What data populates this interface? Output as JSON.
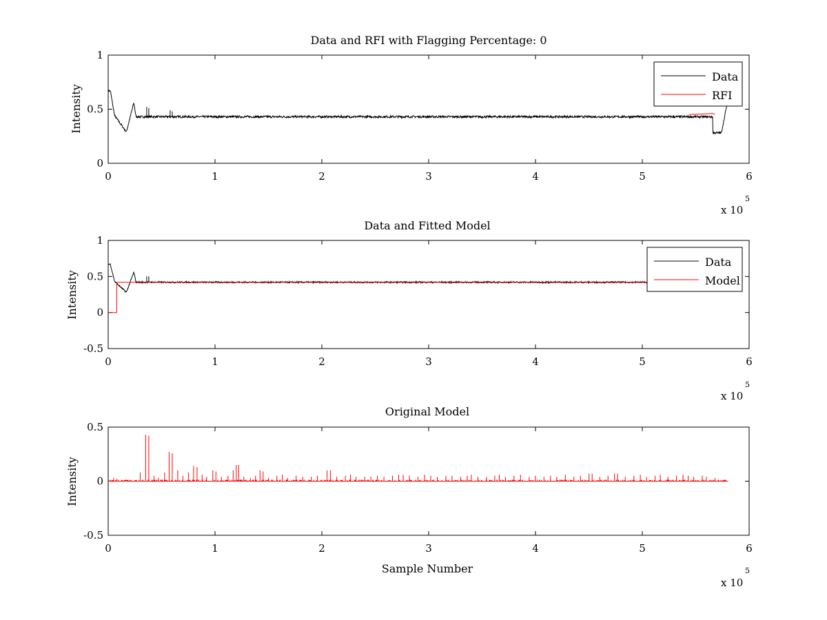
{
  "colors": {
    "data": "#000000",
    "rfi": "#ff0000",
    "model": "#ff0000",
    "background": "#ffffff",
    "axes": "#000000"
  },
  "chart_data": [
    {
      "type": "line",
      "title": "Data and RFI with Flagging Percentage: 0",
      "xlabel": "",
      "ylabel": "Intensity",
      "xlim": [
        0,
        600000
      ],
      "ylim": [
        0,
        1
      ],
      "xticks": [
        0,
        1,
        2,
        3,
        4,
        5,
        6
      ],
      "yticks": [
        "0",
        "0.5",
        "1"
      ],
      "x_exponent": "x 10",
      "x_exponent_power": "5",
      "legend": {
        "position": "top-right",
        "entries": [
          "Data",
          "RFI"
        ]
      },
      "grid": false,
      "series": [
        {
          "name": "Data",
          "color": "#000000",
          "baseline": 0.43,
          "noise": 0.01,
          "x_end": 580000,
          "features": [
            {
              "x": 2000,
              "y": 0.67
            },
            {
              "x": 6000,
              "y": 0.44
            },
            {
              "x": 17000,
              "y": 0.29
            },
            {
              "x": 24000,
              "y": 0.56
            },
            {
              "x": 26000,
              "y": 0.43
            },
            {
              "x": 574000,
              "y": 0.28
            },
            {
              "x": 579000,
              "y": 0.53
            }
          ],
          "spikes": [
            [
              36000,
              0.52
            ],
            [
              38000,
              0.51
            ],
            [
              58000,
              0.49
            ],
            [
              60000,
              0.48
            ]
          ]
        },
        {
          "name": "RFI",
          "color": "#ff0000",
          "points": [
            [
              544000,
              0.45
            ],
            [
              566000,
              0.46
            ],
            [
              568000,
              0.45
            ]
          ]
        }
      ]
    },
    {
      "type": "line",
      "title": "Data and Fitted Model",
      "xlabel": "",
      "ylabel": "Intensity",
      "xlim": [
        0,
        600000
      ],
      "ylim": [
        -0.5,
        1
      ],
      "xticks": [
        0,
        1,
        2,
        3,
        4,
        5,
        6
      ],
      "yticks": [
        "-0.5",
        "0",
        "0.5",
        "1"
      ],
      "x_exponent": "x 10",
      "x_exponent_power": "5",
      "legend": {
        "position": "top-right",
        "entries": [
          "Data",
          "Model"
        ]
      },
      "grid": false,
      "series": [
        {
          "name": "Data",
          "color": "#000000",
          "baseline": 0.42,
          "noise": 0.01,
          "x_end": 580000,
          "features": [
            {
              "x": 2000,
              "y": 0.67
            },
            {
              "x": 6000,
              "y": 0.43
            },
            {
              "x": 17000,
              "y": 0.28
            },
            {
              "x": 24000,
              "y": 0.56
            },
            {
              "x": 26000,
              "y": 0.42
            }
          ],
          "spikes": [
            [
              36000,
              0.5
            ],
            [
              38000,
              0.5
            ]
          ]
        },
        {
          "name": "Model",
          "color": "#ff0000",
          "points": [
            [
              0,
              0
            ],
            [
              8000,
              0
            ],
            [
              8000,
              0.42
            ],
            [
              580000,
              0.42
            ]
          ]
        }
      ]
    },
    {
      "type": "line",
      "title": "Original Model",
      "xlabel": "Sample Number",
      "ylabel": "Intensity",
      "xlim": [
        0,
        600000
      ],
      "ylim": [
        -0.5,
        0.5
      ],
      "xticks": [
        0,
        1,
        2,
        3,
        4,
        5,
        6
      ],
      "yticks": [
        "-0.5",
        "0",
        "0.5"
      ],
      "x_exponent": "x 10",
      "x_exponent_power": "5",
      "grid": false,
      "series": [
        {
          "name": "",
          "color": "#ff0000",
          "baseline": 0.0,
          "x_end": 580000,
          "spikes": [
            [
              5000,
              0.03
            ],
            [
              8000,
              0.02
            ],
            [
              30000,
              0.08
            ],
            [
              35000,
              0.43
            ],
            [
              38000,
              0.42
            ],
            [
              43000,
              0.05
            ],
            [
              47000,
              0.03
            ],
            [
              53000,
              0.08
            ],
            [
              57000,
              0.27
            ],
            [
              60000,
              0.26
            ],
            [
              65000,
              0.1
            ],
            [
              70000,
              0.05
            ],
            [
              75000,
              0.08
            ],
            [
              80000,
              0.14
            ],
            [
              83000,
              0.13
            ],
            [
              88000,
              0.06
            ],
            [
              92000,
              0.04
            ],
            [
              98000,
              0.1
            ],
            [
              101000,
              0.09
            ],
            [
              106000,
              0.04
            ],
            [
              112000,
              0.05
            ],
            [
              117000,
              0.1
            ],
            [
              120000,
              0.15
            ],
            [
              122000,
              0.15
            ],
            [
              127000,
              0.04
            ],
            [
              133000,
              0.03
            ],
            [
              138000,
              0.05
            ],
            [
              142000,
              0.1
            ],
            [
              145000,
              0.09
            ],
            [
              150000,
              0.03
            ],
            [
              158000,
              0.05
            ],
            [
              163000,
              0.06
            ],
            [
              168000,
              0.03
            ],
            [
              176000,
              0.05
            ],
            [
              182000,
              0.04
            ],
            [
              190000,
              0.04
            ],
            [
              196000,
              0.05
            ],
            [
              205000,
              0.1
            ],
            [
              208000,
              0.1
            ],
            [
              214000,
              0.04
            ],
            [
              222000,
              0.05
            ],
            [
              227000,
              0.06
            ],
            [
              232000,
              0.04
            ],
            [
              240000,
              0.04
            ],
            [
              246000,
              0.04
            ],
            [
              252000,
              0.05
            ],
            [
              258000,
              0.04
            ],
            [
              266000,
              0.05
            ],
            [
              272000,
              0.06
            ],
            [
              276000,
              0.06
            ],
            [
              282000,
              0.05
            ],
            [
              290000,
              0.04
            ],
            [
              296000,
              0.06
            ],
            [
              302000,
              0.05
            ],
            [
              308000,
              0.04
            ],
            [
              316000,
              0.05
            ],
            [
              322000,
              0.05
            ],
            [
              330000,
              0.04
            ],
            [
              336000,
              0.05
            ],
            [
              340000,
              0.06
            ],
            [
              346000,
              0.04
            ],
            [
              354000,
              0.04
            ],
            [
              362000,
              0.05
            ],
            [
              366000,
              0.06
            ],
            [
              372000,
              0.04
            ],
            [
              380000,
              0.05
            ],
            [
              386000,
              0.06
            ],
            [
              394000,
              0.04
            ],
            [
              400000,
              0.05
            ],
            [
              408000,
              0.04
            ],
            [
              414000,
              0.05
            ],
            [
              420000,
              0.04
            ],
            [
              428000,
              0.06
            ],
            [
              436000,
              0.04
            ],
            [
              442000,
              0.05
            ],
            [
              450000,
              0.07
            ],
            [
              453000,
              0.07
            ],
            [
              460000,
              0.04
            ],
            [
              468000,
              0.05
            ],
            [
              474000,
              0.07
            ],
            [
              477000,
              0.07
            ],
            [
              484000,
              0.04
            ],
            [
              492000,
              0.05
            ],
            [
              498000,
              0.06
            ],
            [
              504000,
              0.04
            ],
            [
              512000,
              0.05
            ],
            [
              517000,
              0.06
            ],
            [
              524000,
              0.04
            ],
            [
              532000,
              0.05
            ],
            [
              538000,
              0.06
            ],
            [
              543000,
              0.05
            ],
            [
              548000,
              0.04
            ],
            [
              556000,
              0.05
            ],
            [
              560000,
              0.04
            ],
            [
              568000,
              0.03
            ]
          ]
        }
      ]
    }
  ]
}
